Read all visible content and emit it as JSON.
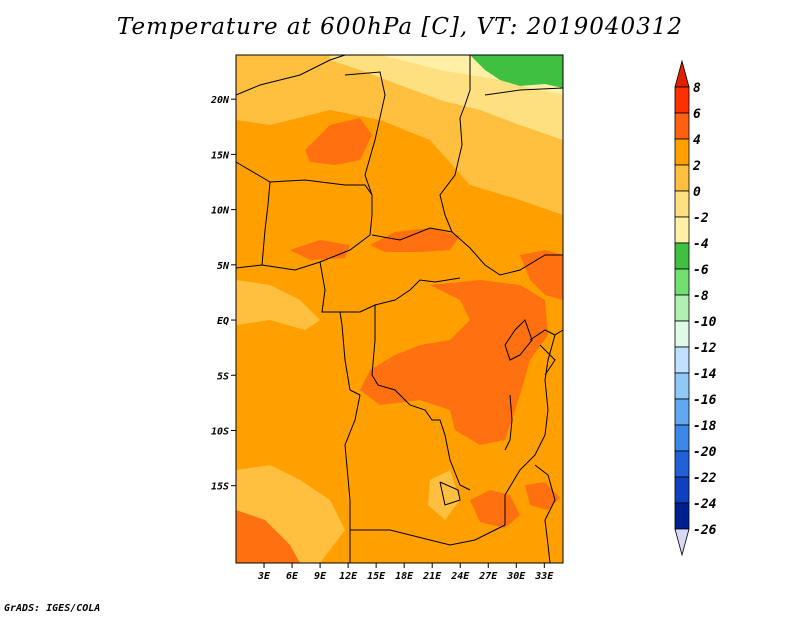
{
  "title": "Temperature at 600hPa [C], VT: 2019040312",
  "credit": "GrADS: IGES/COLA",
  "map": {
    "lon_range": [
      0,
      35
    ],
    "lat_range": [
      -22,
      24
    ],
    "lat_ticks": [
      {
        "value": 20,
        "label": "20N"
      },
      {
        "value": 15,
        "label": "15N"
      },
      {
        "value": 10,
        "label": "10N"
      },
      {
        "value": 5,
        "label": "5N"
      },
      {
        "value": 0,
        "label": "EQ"
      },
      {
        "value": -5,
        "label": "5S"
      },
      {
        "value": -10,
        "label": "10S"
      },
      {
        "value": -15,
        "label": "15S"
      }
    ],
    "lon_ticks": [
      {
        "value": 3,
        "label": "3E"
      },
      {
        "value": 6,
        "label": "6E"
      },
      {
        "value": 9,
        "label": "9E"
      },
      {
        "value": 12,
        "label": "12E"
      },
      {
        "value": 15,
        "label": "15E"
      },
      {
        "value": 18,
        "label": "18E"
      },
      {
        "value": 21,
        "label": "21E"
      },
      {
        "value": 24,
        "label": "24E"
      },
      {
        "value": 27,
        "label": "27E"
      },
      {
        "value": 30,
        "label": "30E"
      },
      {
        "value": 33,
        "label": "33E"
      }
    ],
    "field_colors": {
      "band_0_2": "#ffc040",
      "band_2_4": "#ffa000",
      "band_4_6": "#ff7010",
      "band_neg2_0": "#ffe080",
      "band_neg4_neg2": "#fff0a8",
      "band_neg6_neg4": "#40c040",
      "background": "#ffa000"
    }
  },
  "colorbar": {
    "labels": [
      "8",
      "6",
      "4",
      "2",
      "0",
      "-2",
      "-4",
      "-6",
      "-8",
      "-10",
      "-12",
      "-14",
      "-16",
      "-18",
      "-20",
      "-22",
      "-24",
      "-26"
    ],
    "colors": [
      "#ff3000",
      "#ff6010",
      "#ffa000",
      "#ffc040",
      "#ffe080",
      "#fff0a8",
      "#40c040",
      "#70e070",
      "#b0f0b0",
      "#e0fae8",
      "#c0e0ff",
      "#90c8f8",
      "#60a8f0",
      "#3c88e8",
      "#2060d8",
      "#1040c0",
      "#002090"
    ],
    "top_arrow_color": "#e02000",
    "bottom_arrow_color": "#d8d8f8"
  }
}
